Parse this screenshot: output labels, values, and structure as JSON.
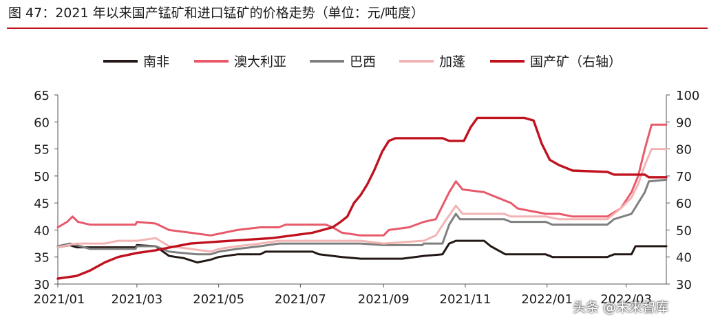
{
  "header": {
    "title": "图 47：2021 年以来国产锰矿和进口锰矿的价格走势（单位：元/吨度）"
  },
  "watermark": "头条 @未来智库",
  "chart_data": {
    "type": "line",
    "x_tick_labels": [
      "2021/01",
      "2021/03",
      "2021/05",
      "2021/07",
      "2021/09",
      "2021/11",
      "2022/01",
      "2022/03"
    ],
    "x_range": [
      "2021-01-01",
      "2022-03-31"
    ],
    "ylim_left": [
      30,
      65
    ],
    "yticks_left": [
      30,
      35,
      40,
      45,
      50,
      55,
      60,
      65
    ],
    "ylim_right": [
      30,
      100
    ],
    "yticks_right": [
      30,
      40,
      50,
      60,
      70,
      80,
      90,
      100
    ],
    "grid": false,
    "legend_position": "top",
    "series": [
      {
        "name": "南非",
        "color": "#231815",
        "axis": "left",
        "points": [
          [
            "2021-01-01",
            36.8
          ],
          [
            "2021-01-10",
            37.2
          ],
          [
            "2021-01-15",
            36.8
          ],
          [
            "2021-01-31",
            36.8
          ],
          [
            "2021-02-28",
            36.8
          ],
          [
            "2021-03-01",
            37.2
          ],
          [
            "2021-03-15",
            37.0
          ],
          [
            "2021-03-25",
            35.2
          ],
          [
            "2021-04-05",
            34.8
          ],
          [
            "2021-04-15",
            34.0
          ],
          [
            "2021-04-25",
            34.5
          ],
          [
            "2021-05-01",
            35.0
          ],
          [
            "2021-05-15",
            35.5
          ],
          [
            "2021-06-01",
            35.5
          ],
          [
            "2021-06-05",
            36.0
          ],
          [
            "2021-07-10",
            36.0
          ],
          [
            "2021-07-15",
            35.5
          ],
          [
            "2021-08-01",
            35.0
          ],
          [
            "2021-08-15",
            34.7
          ],
          [
            "2021-09-15",
            34.7
          ],
          [
            "2021-10-01",
            35.2
          ],
          [
            "2021-10-15",
            35.5
          ],
          [
            "2021-10-20",
            37.5
          ],
          [
            "2021-10-25",
            38.0
          ],
          [
            "2021-11-15",
            38.0
          ],
          [
            "2021-11-20",
            37.0
          ],
          [
            "2021-12-01",
            35.5
          ],
          [
            "2021-12-31",
            35.5
          ],
          [
            "2022-01-05",
            35.0
          ],
          [
            "2022-01-31",
            35.0
          ],
          [
            "2022-02-15",
            35.0
          ],
          [
            "2022-02-20",
            35.5
          ],
          [
            "2022-03-05",
            35.5
          ],
          [
            "2022-03-08",
            37.0
          ],
          [
            "2022-03-31",
            37.0
          ]
        ]
      },
      {
        "name": "澳大利亚",
        "color": "#e8596a",
        "axis": "left",
        "points": [
          [
            "2021-01-01",
            40.5
          ],
          [
            "2021-01-08",
            41.5
          ],
          [
            "2021-01-12",
            42.5
          ],
          [
            "2021-01-16",
            41.5
          ],
          [
            "2021-01-25",
            41.0
          ],
          [
            "2021-02-28",
            41.0
          ],
          [
            "2021-03-01",
            41.5
          ],
          [
            "2021-03-15",
            41.2
          ],
          [
            "2021-03-25",
            40.0
          ],
          [
            "2021-04-10",
            39.5
          ],
          [
            "2021-04-25",
            39.0
          ],
          [
            "2021-05-05",
            39.5
          ],
          [
            "2021-05-15",
            40.0
          ],
          [
            "2021-06-01",
            40.5
          ],
          [
            "2021-06-15",
            40.5
          ],
          [
            "2021-06-20",
            41.0
          ],
          [
            "2021-07-20",
            41.0
          ],
          [
            "2021-07-25",
            40.5
          ],
          [
            "2021-08-01",
            39.5
          ],
          [
            "2021-08-15",
            39.0
          ],
          [
            "2021-09-01",
            39.0
          ],
          [
            "2021-09-05",
            40.0
          ],
          [
            "2021-09-20",
            40.5
          ],
          [
            "2021-10-01",
            41.5
          ],
          [
            "2021-10-10",
            42.0
          ],
          [
            "2021-10-15",
            44.5
          ],
          [
            "2021-10-20",
            47.0
          ],
          [
            "2021-10-25",
            49.0
          ],
          [
            "2021-10-30",
            47.5
          ],
          [
            "2021-11-15",
            47.0
          ],
          [
            "2021-11-25",
            46.0
          ],
          [
            "2021-12-05",
            45.0
          ],
          [
            "2021-12-10",
            44.0
          ],
          [
            "2021-12-20",
            43.5
          ],
          [
            "2021-12-31",
            43.0
          ],
          [
            "2022-01-10",
            43.0
          ],
          [
            "2022-01-20",
            42.5
          ],
          [
            "2022-02-15",
            42.5
          ],
          [
            "2022-02-25",
            44.0
          ],
          [
            "2022-03-05",
            47.0
          ],
          [
            "2022-03-10",
            50.0
          ],
          [
            "2022-03-15",
            55.0
          ],
          [
            "2022-03-20",
            59.5
          ],
          [
            "2022-03-31",
            59.5
          ]
        ]
      },
      {
        "name": "巴西",
        "color": "#7f7f7f",
        "axis": "left",
        "points": [
          [
            "2021-01-01",
            37.0
          ],
          [
            "2021-01-10",
            37.5
          ],
          [
            "2021-01-18",
            37.0
          ],
          [
            "2021-01-25",
            36.5
          ],
          [
            "2021-02-28",
            36.5
          ],
          [
            "2021-03-01",
            37.0
          ],
          [
            "2021-03-15",
            37.0
          ],
          [
            "2021-03-25",
            36.0
          ],
          [
            "2021-04-15",
            35.5
          ],
          [
            "2021-04-25",
            35.5
          ],
          [
            "2021-05-01",
            36.0
          ],
          [
            "2021-05-15",
            36.5
          ],
          [
            "2021-06-01",
            37.0
          ],
          [
            "2021-06-15",
            37.5
          ],
          [
            "2021-07-31",
            37.5
          ],
          [
            "2021-08-15",
            37.5
          ],
          [
            "2021-09-01",
            37.2
          ],
          [
            "2021-09-30",
            37.2
          ],
          [
            "2021-10-01",
            37.5
          ],
          [
            "2021-10-15",
            37.5
          ],
          [
            "2021-10-20",
            41.0
          ],
          [
            "2021-10-25",
            43.0
          ],
          [
            "2021-10-28",
            42.0
          ],
          [
            "2021-11-30",
            42.0
          ],
          [
            "2021-12-05",
            41.5
          ],
          [
            "2021-12-31",
            41.5
          ],
          [
            "2022-01-05",
            41.0
          ],
          [
            "2022-02-15",
            41.0
          ],
          [
            "2022-02-20",
            42.0
          ],
          [
            "2022-03-05",
            43.0
          ],
          [
            "2022-03-10",
            45.0
          ],
          [
            "2022-03-15",
            47.0
          ],
          [
            "2022-03-18",
            49.0
          ],
          [
            "2022-03-31",
            49.3
          ]
        ]
      },
      {
        "name": "加蓬",
        "color": "#f4b3b3",
        "axis": "left",
        "points": [
          [
            "2021-01-01",
            36.8
          ],
          [
            "2021-01-15",
            37.5
          ],
          [
            "2021-01-30",
            37.5
          ],
          [
            "2021-02-05",
            37.5
          ],
          [
            "2021-02-15",
            38.0
          ],
          [
            "2021-03-01",
            38.0
          ],
          [
            "2021-03-15",
            38.5
          ],
          [
            "2021-03-25",
            37.0
          ],
          [
            "2021-04-10",
            36.5
          ],
          [
            "2021-04-25",
            36.0
          ],
          [
            "2021-05-01",
            36.5
          ],
          [
            "2021-05-15",
            37.0
          ],
          [
            "2021-06-01",
            37.5
          ],
          [
            "2021-06-15",
            38.0
          ],
          [
            "2021-07-31",
            38.0
          ],
          [
            "2021-08-15",
            38.0
          ],
          [
            "2021-09-01",
            37.5
          ],
          [
            "2021-09-30",
            38.0
          ],
          [
            "2021-10-01",
            38.0
          ],
          [
            "2021-10-10",
            39.0
          ],
          [
            "2021-10-18",
            42.0
          ],
          [
            "2021-10-25",
            44.5
          ],
          [
            "2021-10-30",
            43.0
          ],
          [
            "2021-11-30",
            43.0
          ],
          [
            "2021-12-05",
            42.5
          ],
          [
            "2021-12-31",
            42.5
          ],
          [
            "2022-01-10",
            42.0
          ],
          [
            "2022-02-15",
            42.0
          ],
          [
            "2022-02-25",
            44.0
          ],
          [
            "2022-03-05",
            46.0
          ],
          [
            "2022-03-10",
            48.5
          ],
          [
            "2022-03-15",
            52.0
          ],
          [
            "2022-03-20",
            55.0
          ],
          [
            "2022-03-31",
            55.0
          ]
        ]
      },
      {
        "name": "国产矿（右轴）",
        "color": "#c0111f",
        "axis": "right",
        "points": [
          [
            "2021-01-01",
            32.0
          ],
          [
            "2021-01-15",
            33.0
          ],
          [
            "2021-01-25",
            35.0
          ],
          [
            "2021-02-05",
            38.0
          ],
          [
            "2021-02-15",
            40.0
          ],
          [
            "2021-03-01",
            41.5
          ],
          [
            "2021-03-15",
            42.5
          ],
          [
            "2021-03-25",
            43.5
          ],
          [
            "2021-04-10",
            45.0
          ],
          [
            "2021-04-25",
            45.5
          ],
          [
            "2021-05-10",
            46.0
          ],
          [
            "2021-05-25",
            46.5
          ],
          [
            "2021-06-10",
            47.0
          ],
          [
            "2021-06-25",
            48.0
          ],
          [
            "2021-07-10",
            49.0
          ],
          [
            "2021-07-25",
            51.0
          ],
          [
            "2021-07-31",
            53.0
          ],
          [
            "2021-08-05",
            55.0
          ],
          [
            "2021-08-10",
            60.0
          ],
          [
            "2021-08-15",
            63.0
          ],
          [
            "2021-08-20",
            67.0
          ],
          [
            "2021-08-25",
            72.0
          ],
          [
            "2021-08-31",
            79.0
          ],
          [
            "2021-09-05",
            83.0
          ],
          [
            "2021-09-10",
            84.0
          ],
          [
            "2021-09-30",
            84.0
          ],
          [
            "2021-10-15",
            84.0
          ],
          [
            "2021-10-20",
            83.0
          ],
          [
            "2021-10-31",
            83.0
          ],
          [
            "2021-11-05",
            88.0
          ],
          [
            "2021-11-10",
            91.5
          ],
          [
            "2021-11-30",
            91.5
          ],
          [
            "2021-12-15",
            91.5
          ],
          [
            "2021-12-22",
            90.5
          ],
          [
            "2021-12-28",
            82.0
          ],
          [
            "2022-01-03",
            76.0
          ],
          [
            "2022-01-10",
            74.0
          ],
          [
            "2022-01-20",
            72.0
          ],
          [
            "2022-02-15",
            71.5
          ],
          [
            "2022-02-20",
            70.5
          ],
          [
            "2022-03-15",
            70.5
          ],
          [
            "2022-03-18",
            69.5
          ],
          [
            "2022-03-31",
            69.5
          ]
        ]
      }
    ]
  }
}
